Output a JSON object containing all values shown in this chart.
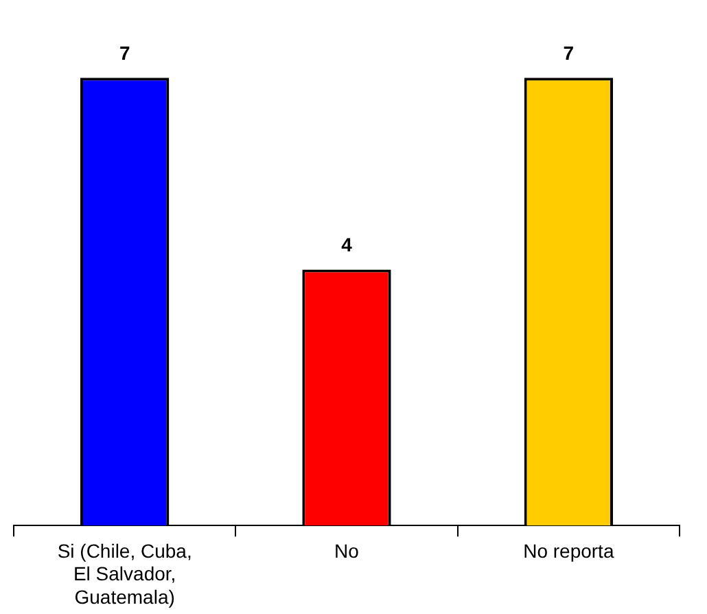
{
  "chart_data": {
    "type": "bar",
    "categories": [
      "Si (Chile, Cuba, El Salvador, Guatemala)",
      "No",
      "No reporta"
    ],
    "values": [
      7,
      4,
      7
    ],
    "colors": [
      "#0000ff",
      "#ff0000",
      "#ffcc00"
    ],
    "data_labels": true,
    "grid": false,
    "legend": false
  }
}
